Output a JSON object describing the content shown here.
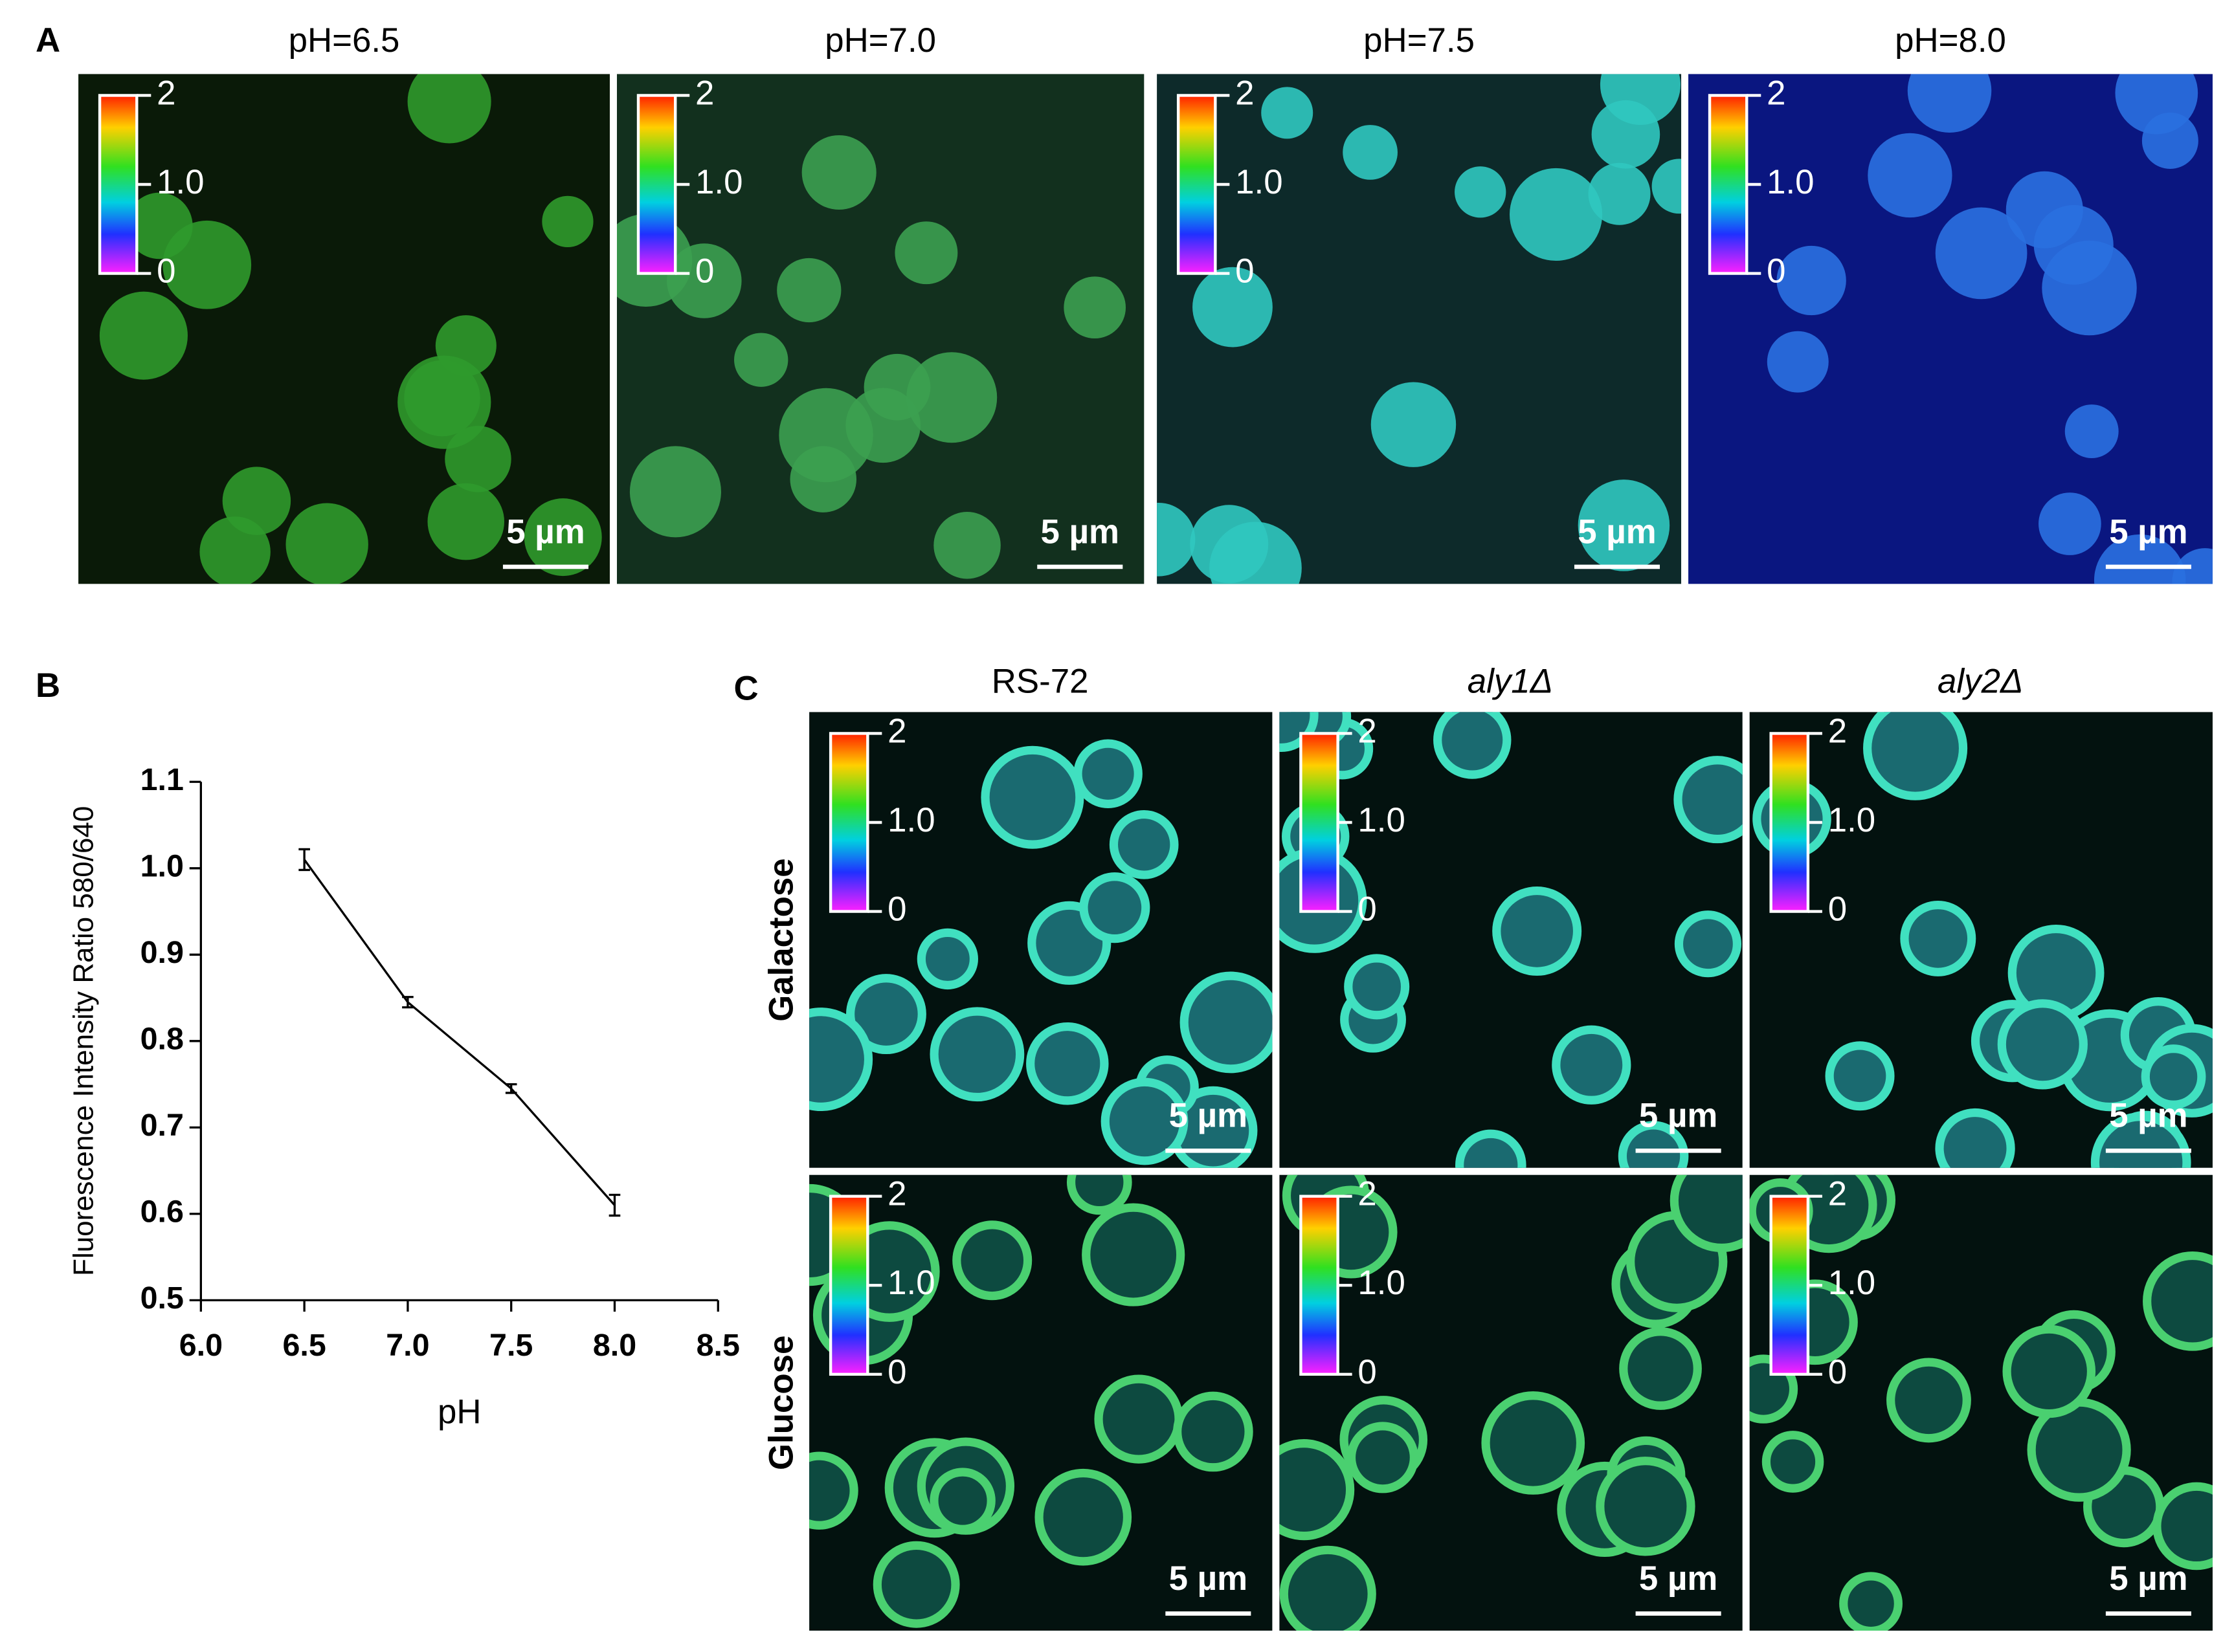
{
  "panel_labels": [
    "A",
    "B",
    "C"
  ],
  "panel_a": {
    "titles": [
      "pH=6.5",
      "pH=7.0",
      "pH=7.5",
      "pH=8.0"
    ],
    "colorbar": [
      "2",
      "1.0",
      "0"
    ],
    "scale_bar": "5 µm"
  },
  "panel_c": {
    "columns": [
      "RS-72",
      "aly1Δ",
      "aly2Δ"
    ],
    "rows": [
      "Galactose",
      "Glucose"
    ],
    "colorbar": [
      "2",
      "1.0",
      "0"
    ],
    "scale_bar": "5 µm"
  },
  "chart_data": {
    "type": "line",
    "x": [
      6.5,
      7.0,
      7.5,
      8.0
    ],
    "values": [
      1.01,
      0.845,
      0.745,
      0.61
    ],
    "errors": [
      0.012,
      0.006,
      0.005,
      0.012
    ],
    "color": "#000000",
    "xlabel": "pH",
    "ylabel": "Fluorescence Intensity Ratio 580/640",
    "xlim": [
      6.0,
      8.5
    ],
    "xticks": [
      {
        "value": 6.0,
        "label": "6.0"
      },
      6.5,
      {
        "value": 7.0,
        "label": "7.0"
      },
      7.5,
      {
        "value": 8.0,
        "label": "8.0"
      },
      8.5
    ],
    "ylim": [
      0.5,
      1.1
    ],
    "yticks": [
      0.5,
      0.6,
      0.7,
      0.8,
      0.9,
      {
        "value": 1.0,
        "label": "1.0"
      },
      1.1
    ]
  }
}
